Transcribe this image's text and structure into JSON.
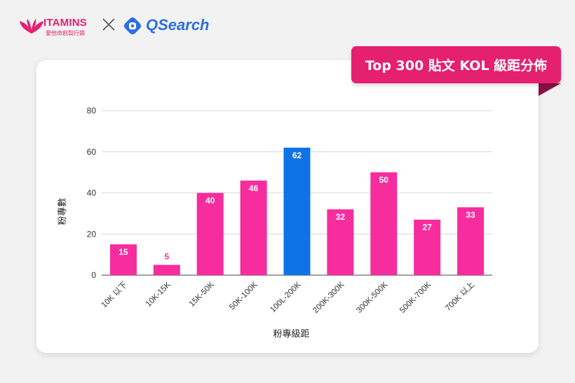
{
  "brand": {
    "vitamins_name": "ITAMINS",
    "vitamins_sub": "愛他命創製行銷",
    "qsearch_name": "QSearch",
    "separator": "×",
    "colors": {
      "pink": "#e5206f",
      "blue": "#2d6fe0"
    }
  },
  "title_badge": "Top 300 貼文 KOL 級距分佈",
  "chart_data": {
    "type": "bar",
    "title": "Top 300 貼文 KOL 級距分佈",
    "xlabel": "粉專級距",
    "ylabel": "粉專數",
    "categories": [
      "10K 以下",
      "10K-15K",
      "15K-50K",
      "50K-100K",
      "100L-200K",
      "200K-300K",
      "300K-500K",
      "500K-700K",
      "700K 以上"
    ],
    "values": [
      15,
      5,
      40,
      46,
      62,
      32,
      50,
      27,
      33
    ],
    "highlight_index": 4,
    "ylim": [
      0,
      80
    ],
    "yticks": [
      0,
      20,
      40,
      60,
      80
    ],
    "grid": true,
    "colors": {
      "bar": "#f72d9e",
      "highlight": "#0f73e8",
      "label_inside": "#ffffff",
      "label_outside": "#f72d9e"
    }
  }
}
